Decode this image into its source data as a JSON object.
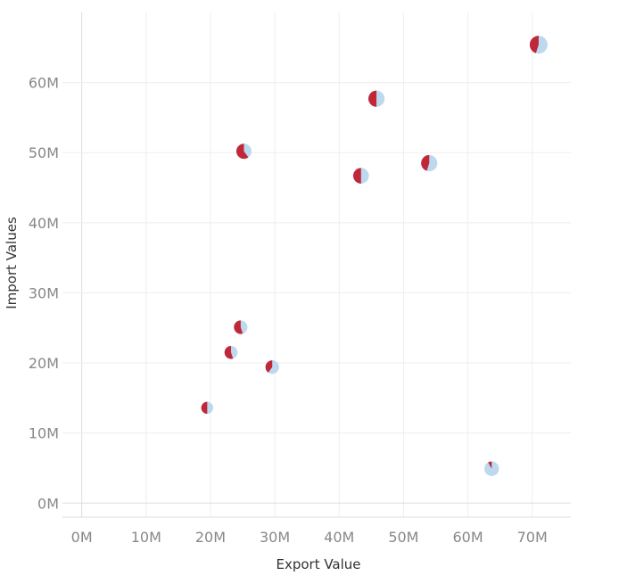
{
  "chart_data": {
    "type": "scatter",
    "marker": "pie",
    "xlabel": "Export Value",
    "ylabel": "Import Values",
    "xlim": [
      -3,
      76
    ],
    "ylim": [
      -2,
      70
    ],
    "x_ticks": [
      0,
      10,
      20,
      30,
      40,
      50,
      60,
      70
    ],
    "y_ticks": [
      0,
      10,
      20,
      30,
      40,
      50,
      60
    ],
    "x_tick_labels": [
      "0M",
      "10M",
      "20M",
      "30M",
      "40M",
      "50M",
      "60M",
      "70M"
    ],
    "y_tick_labels": [
      "0M",
      "10M",
      "20M",
      "30M",
      "40M",
      "50M",
      "60M"
    ],
    "grid": true,
    "legend": "none",
    "colors": {
      "slice_a": "#c0283a",
      "slice_b": "#bcd9ee"
    },
    "points": [
      {
        "x": 71.0,
        "y": 65.4,
        "size": 1.0,
        "share_a": 0.45
      },
      {
        "x": 45.8,
        "y": 57.7,
        "size": 0.85,
        "share_a": 0.5
      },
      {
        "x": 25.2,
        "y": 50.2,
        "size": 0.75,
        "share_a": 0.6
      },
      {
        "x": 43.4,
        "y": 46.7,
        "size": 0.8,
        "share_a": 0.5
      },
      {
        "x": 54.0,
        "y": 48.5,
        "size": 0.85,
        "share_a": 0.45
      },
      {
        "x": 24.7,
        "y": 25.1,
        "size": 0.6,
        "share_a": 0.55
      },
      {
        "x": 23.2,
        "y": 21.5,
        "size": 0.55,
        "share_a": 0.55
      },
      {
        "x": 29.6,
        "y": 19.4,
        "size": 0.6,
        "share_a": 0.4
      },
      {
        "x": 19.5,
        "y": 13.6,
        "size": 0.45,
        "share_a": 0.5
      },
      {
        "x": 63.7,
        "y": 4.9,
        "size": 0.7,
        "share_a": 0.08
      }
    ]
  }
}
